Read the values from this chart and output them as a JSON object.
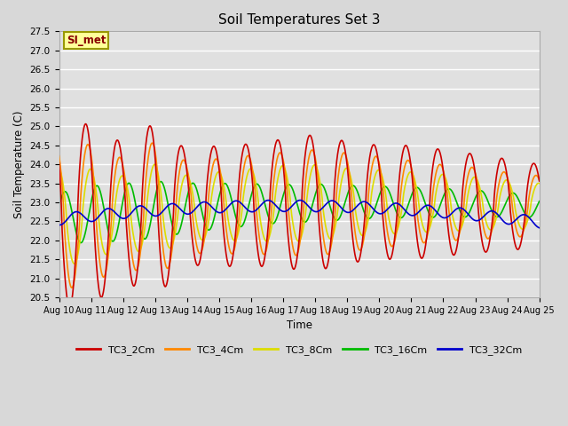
{
  "title": "Soil Temperatures Set 3",
  "xlabel": "Time",
  "ylabel": "Soil Temperature (C)",
  "ylim": [
    20.5,
    27.5
  ],
  "bg_color": "#d8d8d8",
  "plot_bg_color": "#e0e0e0",
  "grid_color": "#ffffff",
  "series": {
    "TC3_2Cm": {
      "color": "#cc0000",
      "lw": 1.2
    },
    "TC3_4Cm": {
      "color": "#ff8800",
      "lw": 1.2
    },
    "TC3_8Cm": {
      "color": "#dddd00",
      "lw": 1.2
    },
    "TC3_16Cm": {
      "color": "#00bb00",
      "lw": 1.2
    },
    "TC3_32Cm": {
      "color": "#0000cc",
      "lw": 1.2
    }
  },
  "annotation_text": "SI_met",
  "annotation_color": "#880000",
  "annotation_bg": "#ffff99",
  "annotation_border": "#999900",
  "n_days": 15,
  "samples_per_day": 144,
  "start_day": 10
}
